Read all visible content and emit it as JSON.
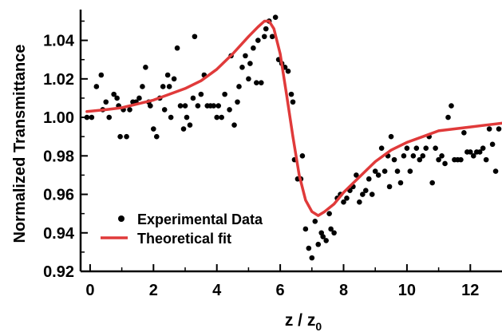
{
  "chart_data": {
    "type": "scatter",
    "title": "",
    "xlabel": "z / z",
    "xlabel_subscript": "0",
    "ylabel": "Normalized Transmittance",
    "xlim": [
      -0.3,
      13.0
    ],
    "ylim": [
      0.92,
      1.056
    ],
    "x_ticks": [
      0,
      2,
      4,
      6,
      8,
      10,
      12
    ],
    "x_tick_labels": [
      "0",
      "2",
      "4",
      "6",
      "8",
      "10",
      "12"
    ],
    "y_ticks": [
      0.92,
      0.94,
      0.96,
      0.98,
      1.0,
      1.02,
      1.04
    ],
    "y_tick_labels": [
      "0.92",
      "0.94",
      "0.96",
      "0.98",
      "1.00",
      "1.02",
      "1.04"
    ],
    "grid": false,
    "legend": {
      "placement": "bottom-left"
    },
    "series": [
      {
        "name": "Experimental Data",
        "kind": "scatter",
        "color": "#000000",
        "points": [
          [
            -0.1,
            1.0
          ],
          [
            0.05,
            1.0
          ],
          [
            0.2,
            1.016
          ],
          [
            0.35,
            1.022
          ],
          [
            0.4,
            1.004
          ],
          [
            0.5,
            1.008
          ],
          [
            0.6,
            1.0
          ],
          [
            0.75,
            1.012
          ],
          [
            0.85,
            1.01
          ],
          [
            0.9,
            1.006
          ],
          [
            0.95,
            0.99
          ],
          [
            1.05,
            1.004
          ],
          [
            1.15,
            0.99
          ],
          [
            1.25,
            1.004
          ],
          [
            1.35,
            1.008
          ],
          [
            1.45,
            1.008
          ],
          [
            1.55,
            1.01
          ],
          [
            1.65,
            1.016
          ],
          [
            1.75,
            1.026
          ],
          [
            1.85,
            1.008
          ],
          [
            1.9,
            1.006
          ],
          [
            2.0,
            0.994
          ],
          [
            2.1,
            0.99
          ],
          [
            2.2,
            1.01
          ],
          [
            2.3,
            1.016
          ],
          [
            2.35,
            1.004
          ],
          [
            2.45,
            1.022
          ],
          [
            2.5,
            1.016
          ],
          [
            2.55,
            1.0
          ],
          [
            2.65,
            1.02
          ],
          [
            2.75,
            1.036
          ],
          [
            2.85,
            1.006
          ],
          [
            2.95,
            0.994
          ],
          [
            3.0,
            1.006
          ],
          [
            3.05,
            1.0
          ],
          [
            3.15,
            0.996
          ],
          [
            3.25,
            1.01
          ],
          [
            3.3,
            1.042
          ],
          [
            3.4,
            1.006
          ],
          [
            3.5,
            1.012
          ],
          [
            3.6,
            1.022
          ],
          [
            3.7,
            1.006
          ],
          [
            3.8,
            1.006
          ],
          [
            3.9,
            1.006
          ],
          [
            4.0,
            1.0
          ],
          [
            4.05,
            1.006
          ],
          [
            4.15,
            1.0
          ],
          [
            4.25,
            1.012
          ],
          [
            4.4,
            1.004
          ],
          [
            4.45,
            1.032
          ],
          [
            4.55,
            0.996
          ],
          [
            4.65,
            1.008
          ],
          [
            4.7,
            1.016
          ],
          [
            4.8,
            1.026
          ],
          [
            4.9,
            1.032
          ],
          [
            5.0,
            1.02
          ],
          [
            5.05,
            1.028
          ],
          [
            5.15,
            1.036
          ],
          [
            5.25,
            1.018
          ],
          [
            5.3,
            1.04
          ],
          [
            5.4,
            1.018
          ],
          [
            5.5,
            1.042
          ],
          [
            5.55,
            1.046
          ],
          [
            5.65,
            1.05
          ],
          [
            5.75,
            1.042
          ],
          [
            5.85,
            1.052
          ],
          [
            5.95,
            1.03
          ],
          [
            6.05,
            1.028
          ],
          [
            6.15,
            1.026
          ],
          [
            6.25,
            1.024
          ],
          [
            6.35,
            1.012
          ],
          [
            6.4,
            1.008
          ],
          [
            6.45,
            0.978
          ],
          [
            6.55,
            0.968
          ],
          [
            6.65,
            0.968
          ],
          [
            6.7,
            0.98
          ],
          [
            6.8,
            0.942
          ],
          [
            6.9,
            0.932
          ],
          [
            7.0,
            0.927
          ],
          [
            7.1,
            0.946
          ],
          [
            7.2,
            0.934
          ],
          [
            7.3,
            0.94
          ],
          [
            7.35,
            0.938
          ],
          [
            7.45,
            0.936
          ],
          [
            7.55,
            0.95
          ],
          [
            7.6,
            0.942
          ],
          [
            7.7,
            0.94
          ],
          [
            7.8,
            0.958
          ],
          [
            7.9,
            0.96
          ],
          [
            8.0,
            0.956
          ],
          [
            8.1,
            0.958
          ],
          [
            8.2,
            0.962
          ],
          [
            8.3,
            0.964
          ],
          [
            8.4,
            0.97
          ],
          [
            8.5,
            0.956
          ],
          [
            8.6,
            0.96
          ],
          [
            8.7,
            0.962
          ],
          [
            8.8,
            0.968
          ],
          [
            8.9,
            0.96
          ],
          [
            9.0,
            0.972
          ],
          [
            9.1,
            0.97
          ],
          [
            9.2,
            0.984
          ],
          [
            9.3,
            0.972
          ],
          [
            9.4,
            0.98
          ],
          [
            9.45,
            0.964
          ],
          [
            9.5,
            0.99
          ],
          [
            9.6,
            0.978
          ],
          [
            9.7,
            0.972
          ],
          [
            9.8,
            0.966
          ],
          [
            9.9,
            0.98
          ],
          [
            10.0,
            0.984
          ],
          [
            10.1,
            0.972
          ],
          [
            10.2,
            0.98
          ],
          [
            10.3,
            0.984
          ],
          [
            10.4,
            0.978
          ],
          [
            10.5,
            0.98
          ],
          [
            10.6,
            0.984
          ],
          [
            10.7,
            0.99
          ],
          [
            10.8,
            0.966
          ],
          [
            10.9,
            0.984
          ],
          [
            11.0,
            0.978
          ],
          [
            11.1,
            0.98
          ],
          [
            11.2,
            0.976
          ],
          [
            11.3,
            1.0
          ],
          [
            11.4,
            1.006
          ],
          [
            11.5,
            0.978
          ],
          [
            11.6,
            0.978
          ],
          [
            11.7,
            0.978
          ],
          [
            11.8,
            0.992
          ],
          [
            11.9,
            0.982
          ],
          [
            12.0,
            0.982
          ],
          [
            12.1,
            0.98
          ],
          [
            12.2,
            0.982
          ],
          [
            12.3,
            0.982
          ],
          [
            12.4,
            0.984
          ],
          [
            12.5,
            0.978
          ],
          [
            12.6,
            0.994
          ],
          [
            12.7,
            0.986
          ],
          [
            12.8,
            0.972
          ],
          [
            12.9,
            0.994
          ]
        ]
      },
      {
        "name": "Theoretical fit",
        "kind": "line",
        "color": "#e03a3a",
        "points": [
          [
            -0.1,
            1.003
          ],
          [
            0.5,
            1.004
          ],
          [
            1.0,
            1.005
          ],
          [
            1.5,
            1.007
          ],
          [
            2.0,
            1.009
          ],
          [
            2.5,
            1.012
          ],
          [
            3.0,
            1.015
          ],
          [
            3.5,
            1.019
          ],
          [
            4.0,
            1.025
          ],
          [
            4.5,
            1.033
          ],
          [
            5.0,
            1.042
          ],
          [
            5.3,
            1.047
          ],
          [
            5.5,
            1.05
          ],
          [
            5.65,
            1.05
          ],
          [
            5.8,
            1.046
          ],
          [
            6.0,
            1.033
          ],
          [
            6.2,
            1.012
          ],
          [
            6.4,
            0.99
          ],
          [
            6.6,
            0.97
          ],
          [
            6.8,
            0.957
          ],
          [
            7.0,
            0.951
          ],
          [
            7.2,
            0.949
          ],
          [
            7.4,
            0.951
          ],
          [
            7.7,
            0.955
          ],
          [
            8.0,
            0.961
          ],
          [
            8.5,
            0.969
          ],
          [
            9.0,
            0.977
          ],
          [
            9.5,
            0.983
          ],
          [
            10.0,
            0.987
          ],
          [
            10.5,
            0.99
          ],
          [
            11.0,
            0.993
          ],
          [
            11.5,
            0.994
          ],
          [
            12.0,
            0.995
          ],
          [
            12.5,
            0.996
          ],
          [
            13.0,
            0.997
          ]
        ]
      }
    ]
  }
}
